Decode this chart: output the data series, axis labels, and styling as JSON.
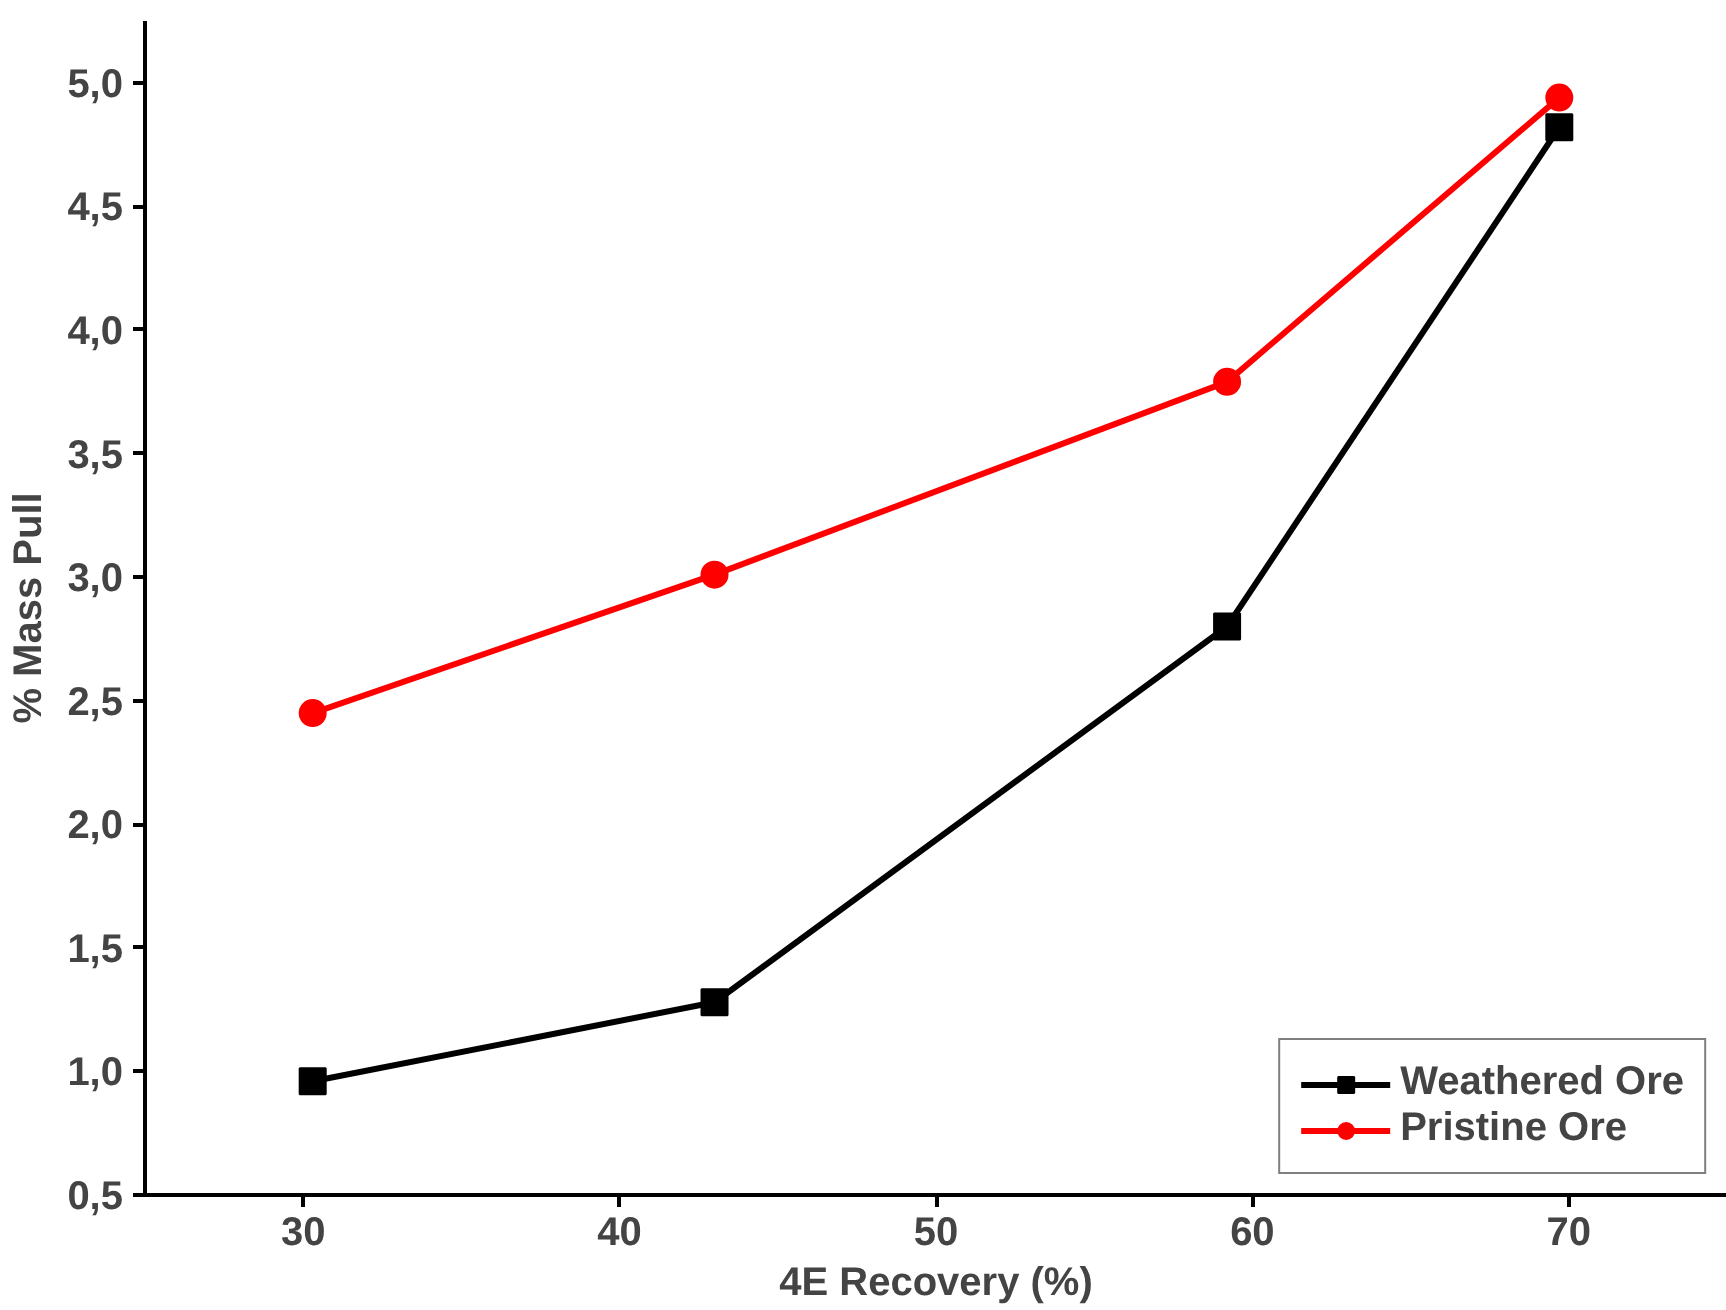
{
  "chart_data": {
    "type": "line",
    "xlabel": "4E Recovery (%)",
    "ylabel": "% Mass Pull",
    "xlim": [
      25,
      75
    ],
    "ylim": [
      0.5,
      5.25
    ],
    "xticks": [
      30,
      40,
      50,
      60,
      70
    ],
    "yticks": [
      {
        "value": 0.5,
        "label": "0,5"
      },
      {
        "value": 1.0,
        "label": "1,0"
      },
      {
        "value": 1.5,
        "label": "1,5"
      },
      {
        "value": 2.0,
        "label": "2,0"
      },
      {
        "value": 2.5,
        "label": "2,5"
      },
      {
        "value": 3.0,
        "label": "3,0"
      },
      {
        "value": 3.5,
        "label": "3,5"
      },
      {
        "value": 4.0,
        "label": "4,0"
      },
      {
        "value": 4.5,
        "label": "4,5"
      },
      {
        "value": 5.0,
        "label": "5,0"
      }
    ],
    "x": [
      30.3,
      43.0,
      59.2,
      69.7
    ],
    "series": [
      {
        "name": "Weathered Ore",
        "color": "#000000",
        "marker": "square",
        "values": [
          0.96,
          1.28,
          2.8,
          4.82
        ]
      },
      {
        "name": "Pristine Ore",
        "color": "#ff0000",
        "marker": "circle",
        "values": [
          2.45,
          3.01,
          3.79,
          4.94
        ]
      }
    ],
    "legend": "bottom right",
    "grid": false,
    "line_style": "solid"
  }
}
